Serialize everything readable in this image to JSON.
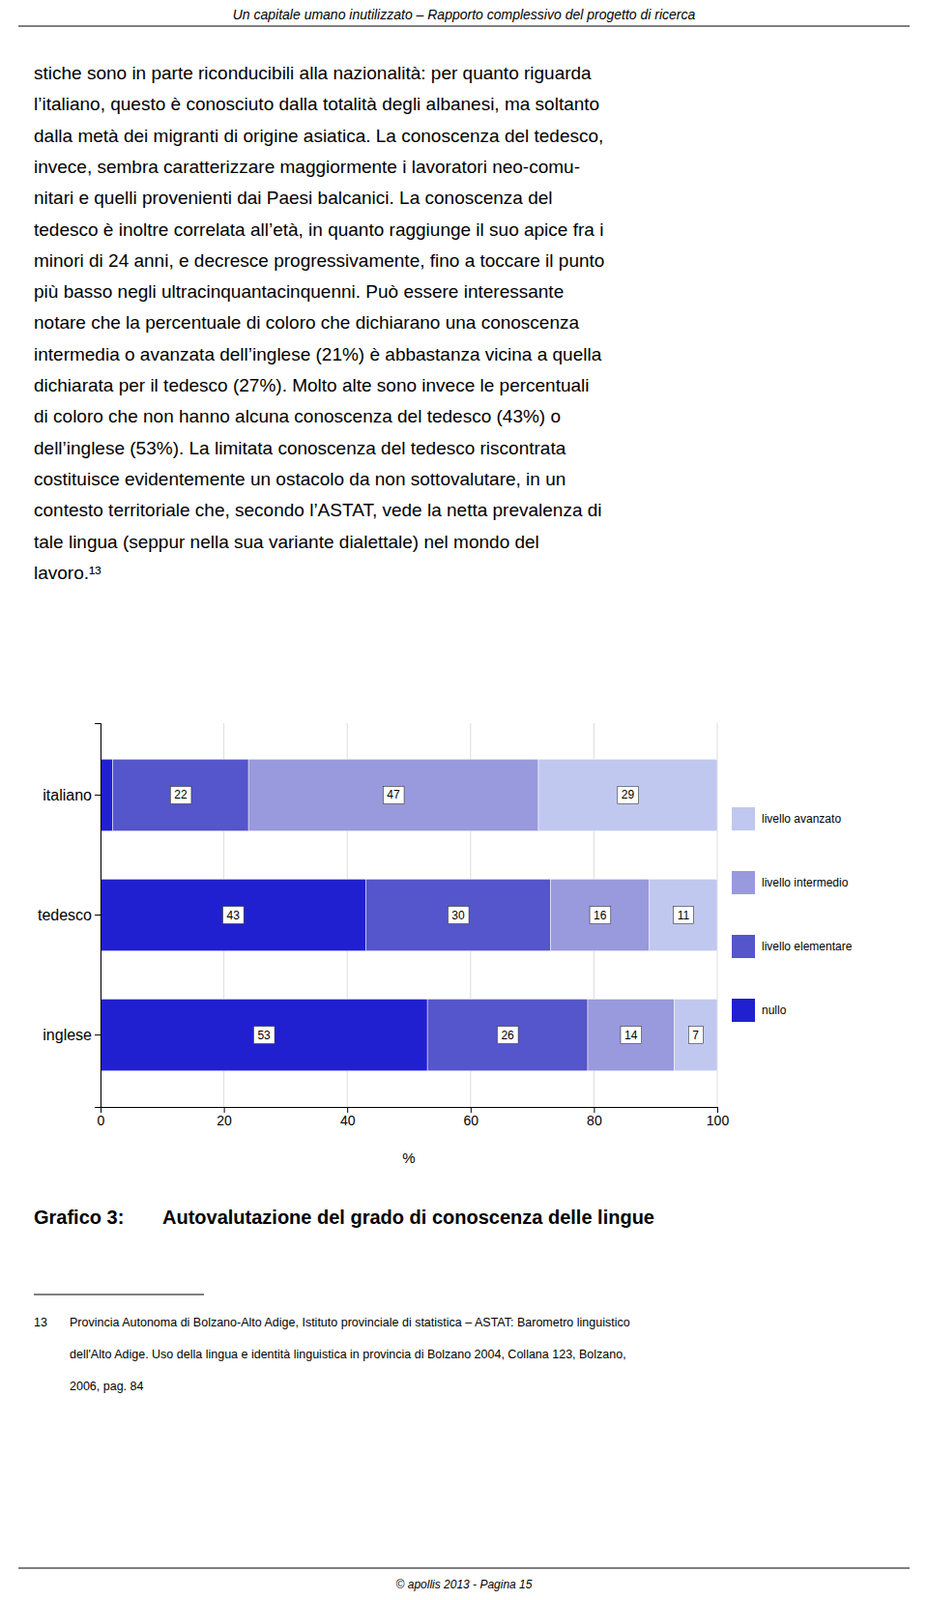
{
  "chart_data": {
    "type": "bar",
    "orientation": "horizontal",
    "stacked": true,
    "data_labels": true,
    "title": "Grafico 3:",
    "subtitle": "Autovalutazione del grado di conoscenza delle lingue",
    "xlabel": "%",
    "categories": [
      "italiano",
      "tedesco",
      "inglese"
    ],
    "series": [
      {
        "name": "nullo",
        "color": "#2020d0",
        "values": [
          2,
          43,
          53
        ],
        "value_labels": [
          null,
          "43",
          "53"
        ]
      },
      {
        "name": "livello elementare",
        "color": "#5555cc",
        "values": [
          22,
          30,
          26
        ]
      },
      {
        "name": "livello intermedio",
        "color": "#9999dd",
        "values": [
          47,
          16,
          14
        ]
      },
      {
        "name": "livello avanzato",
        "color": "#c0c8f0",
        "values": [
          29,
          11,
          7
        ]
      }
    ],
    "xlim": [
      0,
      100
    ],
    "xticks": [
      0,
      20,
      40,
      60,
      80,
      100
    ],
    "grid": true,
    "legend": "right"
  },
  "page": {
    "header": "Un capitale umano inutilizzato – Rapporto complessivo del progetto di ricerca",
    "body_text": [
      "stiche sono in parte riconducibili alla nazionalità: per quanto riguarda",
      "l’italiano, questo è conosciuto dalla totalità degli albanesi, ma soltanto",
      "dalla metà dei migranti di origine asiatica. La conoscenza del tedesco,",
      "invece, sembra caratterizzare maggiormente i lavoratori neo-comu-",
      "nitari e quelli provenienti dai Paesi balcanici. La conoscenza del",
      "tedesco è inoltre correlata all’età, in quanto raggiunge il suo apice fra i",
      "minori di 24 anni, e decresce progressivamente, fino a toccare il punto",
      "più basso negli ultracinquantacinquenni. Può essere interessante",
      "notare che la percentuale di coloro che dichiarano una conoscenza",
      "intermedia o avanzata dell’inglese (21%) è abbastanza vicina a quella",
      "dichiarata per il tedesco (27%). Molto alte sono invece le percentuali",
      "di coloro che non hanno alcuna conoscenza del tedesco (43%) o",
      "dell’inglese (53%). La limitata conoscenza del tedesco riscontrata",
      "costituisce evidentemente un ostacolo da non sottovalutare, in un",
      "contesto territoriale che, secondo l’ASTAT, vede la netta prevalenza di",
      "tale lingua (seppur nella sua variante dialettale) nel mondo del",
      "lavoro.¹³"
    ],
    "footnote_number": "13",
    "footnote_lines": [
      "Provincia Autonoma di Bolzano-Alto Adige, Istituto provinciale di statistica – ASTAT: Barometro linguistico",
      "dell'Alto Adige. Uso della lingua e identità linguistica in provincia di Bolzano 2004, Collana 123, Bolzano,",
      "2006, pag. 84"
    ],
    "footer": "© apollis 2013 - Pagina 15",
    "bg_color": "#ffffff",
    "text_color": "#000000"
  }
}
